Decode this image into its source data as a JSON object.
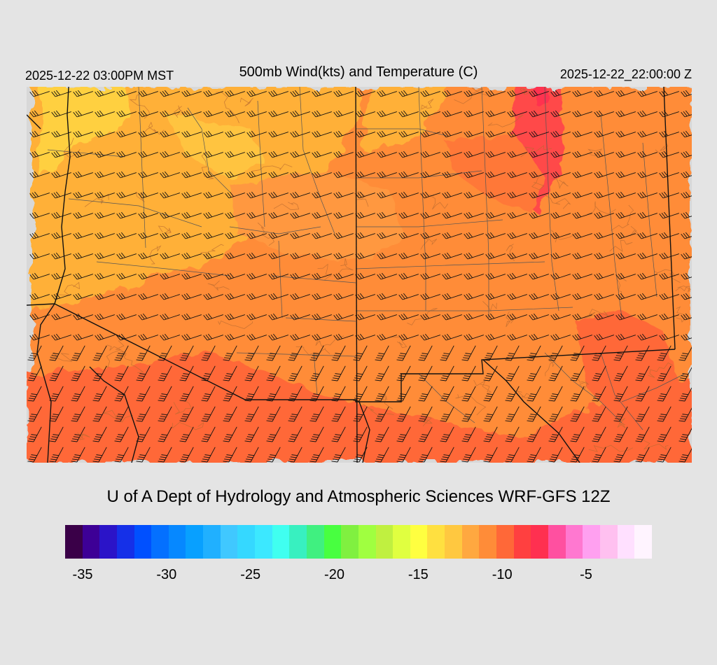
{
  "header": {
    "local_time": "2025-12-22 03:00PM MST",
    "title": "500mb Wind(kts) and Temperature (C)",
    "utc_time": "2025-12-22_22:00:00 Z"
  },
  "footer": {
    "credit": "U of A Dept of Hydrology and Atmospheric Sciences WRF-GFS 12Z"
  },
  "colorbar": {
    "colors": [
      "#3a0048",
      "#3d0096",
      "#2b14c8",
      "#1530e8",
      "#0050ff",
      "#0470ff",
      "#0688ff",
      "#08a0ff",
      "#20b0ff",
      "#40c8ff",
      "#35d8ff",
      "#3ce8ff",
      "#40fff0",
      "#38f0c0",
      "#40f080",
      "#48ff40",
      "#80f040",
      "#a0ff40",
      "#c0f040",
      "#e0ff40",
      "#ffff40",
      "#ffe040",
      "#ffc840",
      "#ffa840",
      "#ff8c38",
      "#ff6838",
      "#ff4040",
      "#ff3050",
      "#ff50a0",
      "#ff78d0",
      "#ffa0f0",
      "#ffc0f0",
      "#ffe0ff",
      "#fff4ff"
    ],
    "ticks": [
      {
        "label": "-35",
        "value": -35
      },
      {
        "label": "-30",
        "value": -30
      },
      {
        "label": "-25",
        "value": -25
      },
      {
        "label": "-20",
        "value": -20
      },
      {
        "label": "-15",
        "value": -15
      },
      {
        "label": "-10",
        "value": -10
      },
      {
        "label": "-5",
        "value": -5
      }
    ]
  },
  "map": {
    "colors": {
      "light_orange": "#ffb038",
      "yellow": "#ffd040",
      "orange": "#ff8c38",
      "red_orange": "#ff6838",
      "red": "#ff4040",
      "no_data": "#d8d8d8"
    }
  }
}
